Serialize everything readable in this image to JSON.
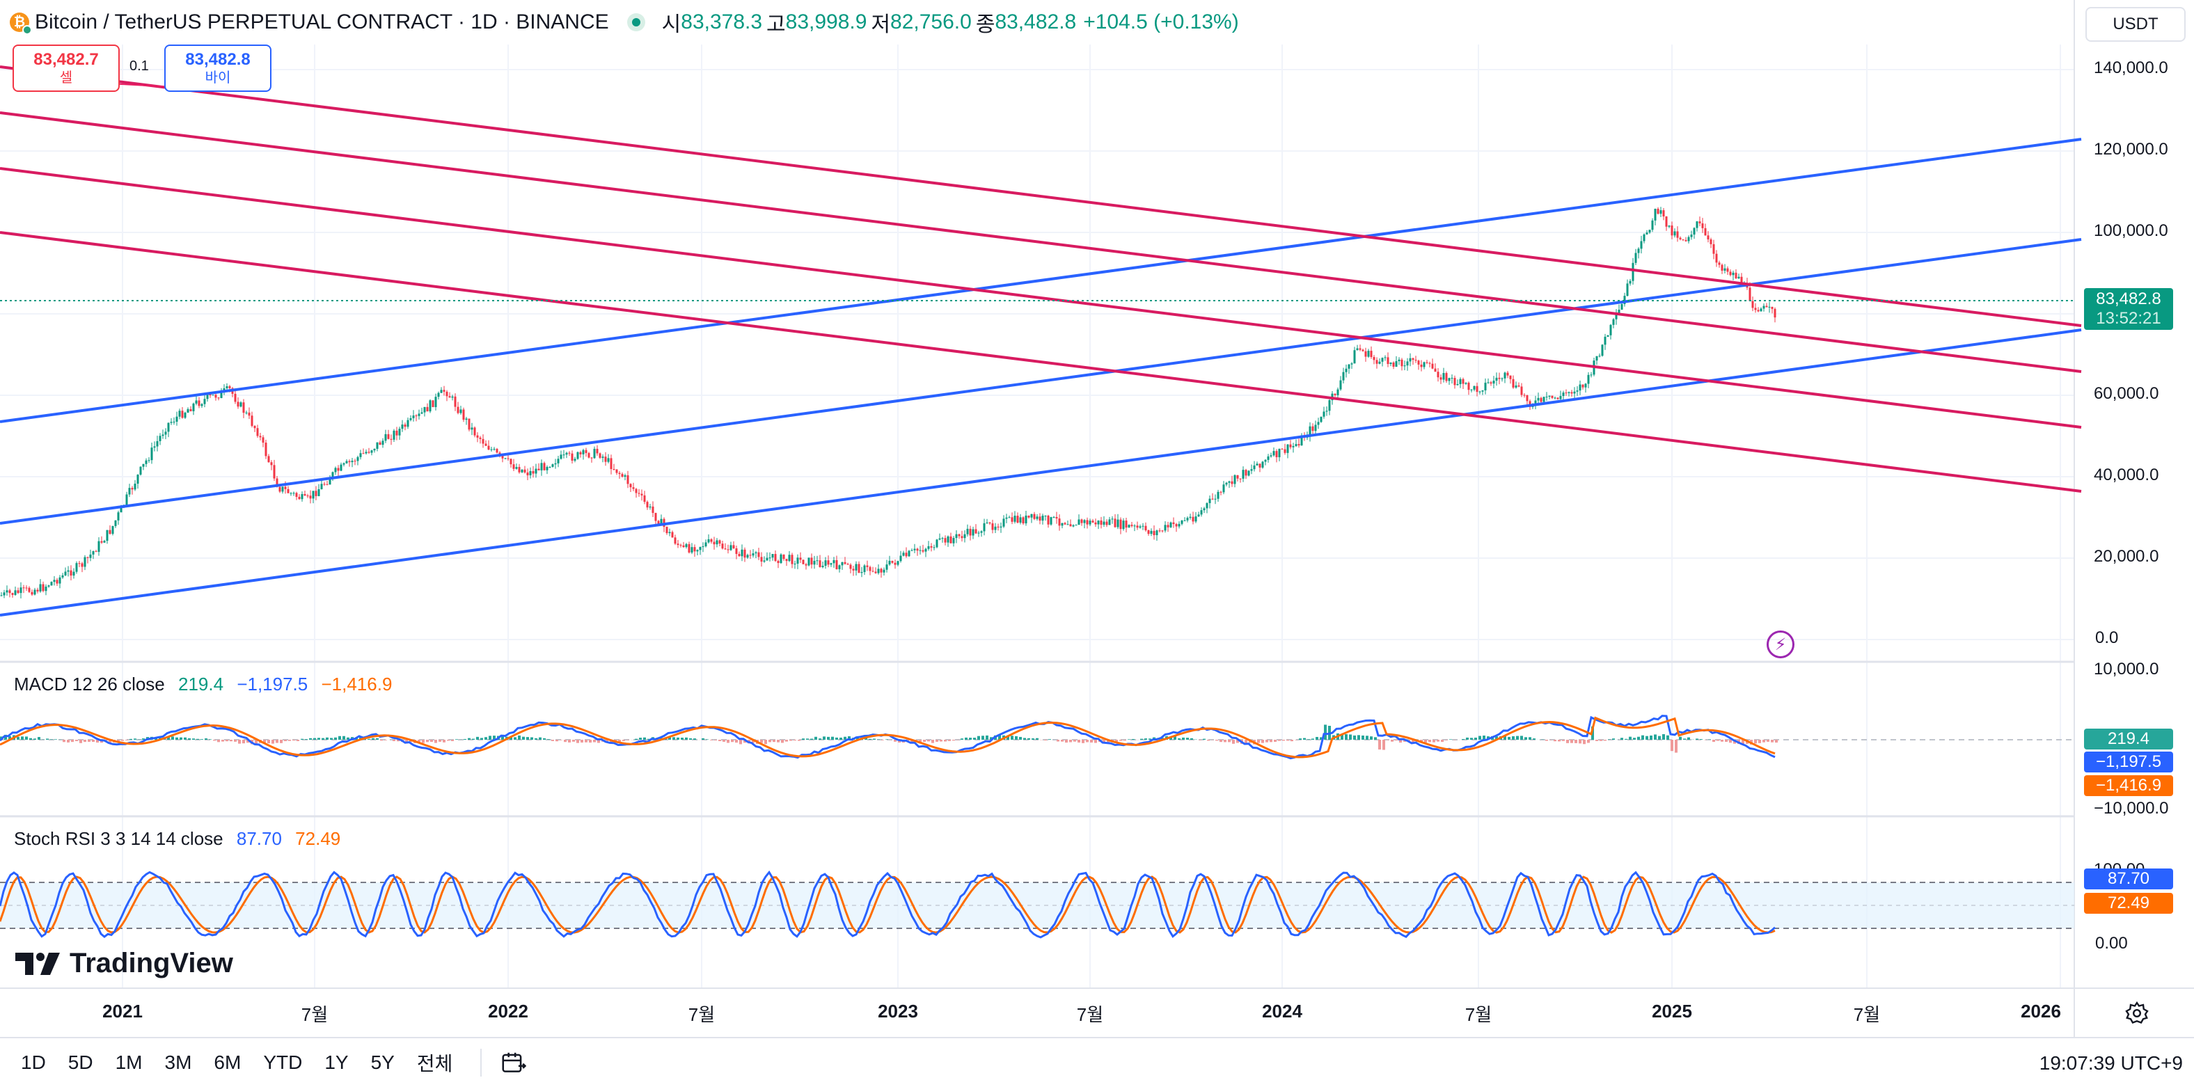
{
  "header": {
    "title": "Bitcoin / TetherUS PERPETUAL CONTRACT · 1D · BINANCE",
    "ohlc": [
      {
        "k": "시",
        "v": "83,378.3"
      },
      {
        "k": "고",
        "v": "83,998.9"
      },
      {
        "k": "저",
        "v": "82,756.0"
      },
      {
        "k": "종",
        "v": "83,482.8"
      }
    ],
    "change": "+104.5 (+0.13%)",
    "currency": "USDT"
  },
  "trade": {
    "sell_price": "83,482.7",
    "sell_label": "셀",
    "spread": "0.1",
    "buy_price": "83,482.8",
    "buy_label": "바이"
  },
  "price_axis": [
    "140,000.0",
    "120,000.0",
    "100,000.0",
    "60,000.0",
    "40,000.0",
    "20,000.0",
    "0.0"
  ],
  "last_price": {
    "price": "83,482.8",
    "countdown": "13:52:21"
  },
  "macd": {
    "legend": "MACD 12 26 close",
    "v1": "219.4",
    "v2": "−1,197.5",
    "v3": "−1,416.9",
    "axis_top": "10,000.0",
    "axis_bottom": "−10,000.0",
    "tag1": "219.4",
    "tag2": "−1,197.5",
    "tag3": "−1,416.9"
  },
  "stoch": {
    "legend": "Stoch RSI 3 3 14 14 close",
    "k": "87.70",
    "d": "72.49",
    "axis_top": "100.00",
    "axis_bottom": "0.00",
    "tag_k": "87.70",
    "tag_d": "72.49"
  },
  "time_axis": [
    "2021",
    "7월",
    "2022",
    "7월",
    "2023",
    "7월",
    "2024",
    "7월",
    "2025",
    "7월",
    "2026"
  ],
  "timeframes": [
    "1D",
    "5D",
    "1M",
    "3M",
    "6M",
    "YTD",
    "1Y",
    "5Y",
    "전체"
  ],
  "clock": "19:07:39 UTC+9",
  "brand": "TradingView",
  "colors": {
    "up": "#089981",
    "down": "#f23645",
    "blue_line": "#2962ff",
    "red_line": "#d81b60",
    "macd_orange": "#ff6d00"
  },
  "icons": [
    "bitcoin-icon",
    "live-dot-icon",
    "lightning-icon",
    "calendar-range-icon",
    "gear-icon",
    "tradingview-logo-icon"
  ]
}
